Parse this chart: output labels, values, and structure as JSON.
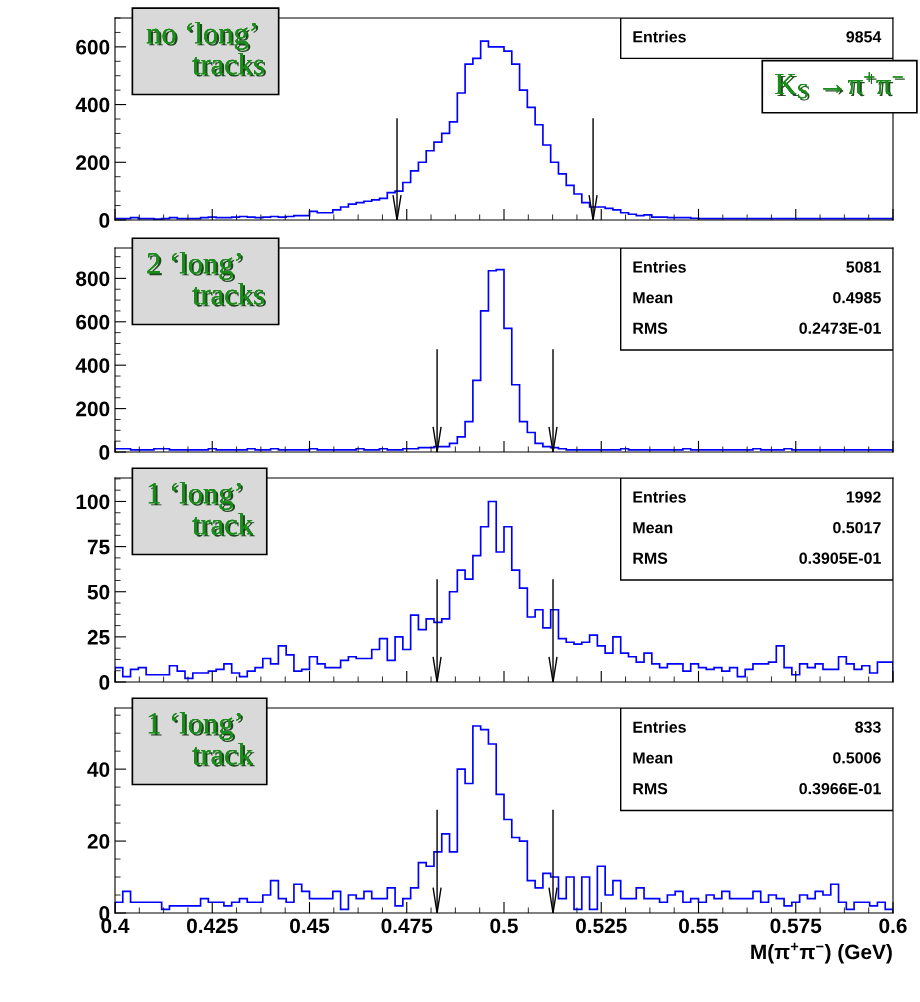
{
  "chart_data": [
    {
      "type": "histogram",
      "title": "no ‘long’ tracks",
      "subtitle": "K$_{S}$ →π$^{+}$π$^{−}$",
      "annotations": [
        "Entries 9854"
      ],
      "color": "#0000ff",
      "tick_labels": "y",
      "xlim": [
        0.4,
        0.6
      ],
      "xticks": [
        0.4,
        0.425,
        0.45,
        0.475,
        0.5,
        0.525,
        0.55,
        0.575,
        0.6
      ],
      "ylim": [
        0,
        700
      ],
      "yticks": [
        0,
        200,
        400,
        600
      ],
      "ref_lines": [
        {
          "axis": "x",
          "value": 0.4725
        },
        {
          "axis": "x",
          "value": 0.5229
        }
      ],
      "bins": [
        0.4,
        0.402,
        0.404,
        0.406,
        0.408,
        0.41,
        0.412,
        0.414,
        0.416,
        0.418,
        0.42,
        0.422,
        0.424,
        0.426,
        0.428,
        0.43,
        0.432,
        0.434,
        0.436,
        0.438,
        0.44,
        0.442,
        0.444,
        0.446,
        0.448,
        0.45,
        0.452,
        0.454,
        0.456,
        0.458,
        0.46,
        0.462,
        0.464,
        0.466,
        0.468,
        0.47,
        0.472,
        0.474,
        0.476,
        0.478,
        0.48,
        0.482,
        0.484,
        0.486,
        0.488,
        0.49,
        0.492,
        0.494,
        0.496,
        0.498,
        0.5,
        0.502,
        0.504,
        0.506,
        0.508,
        0.51,
        0.512,
        0.514,
        0.516,
        0.518,
        0.52,
        0.522,
        0.524,
        0.526,
        0.528,
        0.53,
        0.532,
        0.534,
        0.536,
        0.538,
        0.54,
        0.542,
        0.544,
        0.546,
        0.548,
        0.55,
        0.552,
        0.554,
        0.556,
        0.558,
        0.56,
        0.562,
        0.564,
        0.566,
        0.568,
        0.57,
        0.572,
        0.574,
        0.576,
        0.578,
        0.58,
        0.582,
        0.584,
        0.586,
        0.588,
        0.59,
        0.592,
        0.594,
        0.596,
        0.598,
        0.6
      ],
      "values": [
        5,
        5,
        8,
        5,
        5,
        3,
        5,
        8,
        5,
        5,
        5,
        8,
        10,
        8,
        8,
        10,
        12,
        10,
        8,
        10,
        12,
        10,
        12,
        15,
        15,
        30,
        25,
        25,
        35,
        45,
        55,
        60,
        65,
        70,
        75,
        95,
        100,
        130,
        170,
        200,
        240,
        270,
        300,
        340,
        440,
        540,
        560,
        620,
        600,
        600,
        585,
        540,
        450,
        390,
        330,
        260,
        200,
        160,
        120,
        90,
        60,
        45,
        45,
        40,
        35,
        25,
        20,
        15,
        18,
        10,
        10,
        8,
        8,
        8,
        6,
        5,
        5,
        5,
        5,
        5,
        5,
        5,
        5,
        5,
        5,
        5,
        5,
        5,
        5,
        5,
        5,
        5,
        5,
        5,
        5,
        5,
        5,
        5,
        5,
        5
      ]
    },
    {
      "type": "histogram",
      "title": "2 ‘long’ tracks",
      "annotations": [
        "Entries 5081",
        "Mean 0.4985",
        "RMS 0.2473E-01"
      ],
      "color": "#0000ff",
      "tick_labels": "y",
      "xlim": [
        0.4,
        0.6
      ],
      "xticks": [
        0.4,
        0.425,
        0.45,
        0.475,
        0.5,
        0.525,
        0.55,
        0.575,
        0.6
      ],
      "ylim": [
        0,
        940
      ],
      "yticks": [
        0,
        200,
        400,
        600,
        800
      ],
      "ref_lines": [
        {
          "axis": "x",
          "value": 0.4828
        },
        {
          "axis": "x",
          "value": 0.5126
        }
      ],
      "bins": [
        0.4,
        0.402,
        0.404,
        0.406,
        0.408,
        0.41,
        0.412,
        0.414,
        0.416,
        0.418,
        0.42,
        0.422,
        0.424,
        0.426,
        0.428,
        0.43,
        0.432,
        0.434,
        0.436,
        0.438,
        0.44,
        0.442,
        0.444,
        0.446,
        0.448,
        0.45,
        0.452,
        0.454,
        0.456,
        0.458,
        0.46,
        0.462,
        0.464,
        0.466,
        0.468,
        0.47,
        0.472,
        0.474,
        0.476,
        0.478,
        0.48,
        0.482,
        0.484,
        0.486,
        0.488,
        0.49,
        0.492,
        0.494,
        0.496,
        0.498,
        0.5,
        0.502,
        0.504,
        0.506,
        0.508,
        0.51,
        0.512,
        0.514,
        0.516,
        0.518,
        0.52,
        0.522,
        0.524,
        0.526,
        0.528,
        0.53,
        0.532,
        0.534,
        0.536,
        0.538,
        0.54,
        0.542,
        0.544,
        0.546,
        0.548,
        0.55,
        0.552,
        0.554,
        0.556,
        0.558,
        0.56,
        0.562,
        0.564,
        0.566,
        0.568,
        0.57,
        0.572,
        0.574,
        0.576,
        0.578,
        0.58,
        0.582,
        0.584,
        0.586,
        0.588,
        0.59,
        0.592,
        0.594,
        0.596,
        0.598,
        0.6
      ],
      "values": [
        15,
        15,
        10,
        10,
        10,
        15,
        15,
        10,
        10,
        10,
        10,
        10,
        15,
        10,
        10,
        10,
        10,
        15,
        10,
        10,
        15,
        10,
        10,
        10,
        10,
        15,
        10,
        10,
        10,
        10,
        10,
        15,
        10,
        10,
        15,
        10,
        10,
        15,
        15,
        20,
        20,
        25,
        25,
        40,
        70,
        140,
        330,
        650,
        835,
        840,
        570,
        310,
        140,
        90,
        40,
        25,
        20,
        15,
        10,
        10,
        10,
        10,
        10,
        10,
        10,
        15,
        10,
        10,
        10,
        10,
        10,
        10,
        10,
        15,
        10,
        10,
        10,
        10,
        10,
        10,
        10,
        10,
        15,
        10,
        10,
        10,
        15,
        10,
        10,
        10,
        10,
        10,
        10,
        10,
        10,
        10,
        10,
        10,
        10,
        10
      ]
    },
    {
      "type": "histogram",
      "title": "1 ‘long’ track",
      "annotations": [
        "Entries 1992",
        "Mean 0.5017",
        "RMS 0.3905E-01"
      ],
      "color": "#0000ff",
      "tick_labels": "y",
      "xlim": [
        0.4,
        0.6
      ],
      "xticks": [
        0.4,
        0.425,
        0.45,
        0.475,
        0.5,
        0.525,
        0.55,
        0.575,
        0.6
      ],
      "ylim": [
        0,
        113
      ],
      "yticks": [
        0,
        25,
        50,
        75,
        100
      ],
      "ref_lines": [
        {
          "axis": "x",
          "value": 0.4828
        },
        {
          "axis": "x",
          "value": 0.5126
        }
      ],
      "bins": [
        0.4,
        0.402,
        0.404,
        0.406,
        0.408,
        0.41,
        0.412,
        0.414,
        0.416,
        0.418,
        0.42,
        0.422,
        0.424,
        0.426,
        0.428,
        0.43,
        0.432,
        0.434,
        0.436,
        0.438,
        0.44,
        0.442,
        0.444,
        0.446,
        0.448,
        0.45,
        0.452,
        0.454,
        0.456,
        0.458,
        0.46,
        0.462,
        0.464,
        0.466,
        0.468,
        0.47,
        0.472,
        0.474,
        0.476,
        0.478,
        0.48,
        0.482,
        0.484,
        0.486,
        0.488,
        0.49,
        0.492,
        0.494,
        0.496,
        0.498,
        0.5,
        0.502,
        0.504,
        0.506,
        0.508,
        0.51,
        0.512,
        0.514,
        0.516,
        0.518,
        0.52,
        0.522,
        0.524,
        0.526,
        0.528,
        0.53,
        0.532,
        0.534,
        0.536,
        0.538,
        0.54,
        0.542,
        0.544,
        0.546,
        0.548,
        0.55,
        0.552,
        0.554,
        0.556,
        0.558,
        0.56,
        0.562,
        0.564,
        0.566,
        0.568,
        0.57,
        0.572,
        0.574,
        0.576,
        0.578,
        0.58,
        0.582,
        0.584,
        0.586,
        0.588,
        0.59,
        0.592,
        0.594,
        0.596,
        0.598,
        0.6
      ],
      "values": [
        8,
        3,
        7,
        8,
        4,
        4,
        4,
        9,
        6,
        2,
        5,
        5,
        6,
        7,
        10,
        5,
        3,
        6,
        8,
        13,
        10,
        20,
        15,
        6,
        7,
        14,
        10,
        8,
        8,
        12,
        14,
        13,
        13,
        18,
        24,
        12,
        25,
        18,
        37,
        29,
        35,
        33,
        35,
        50,
        62,
        57,
        70,
        86,
        100,
        72,
        86,
        62,
        52,
        36,
        40,
        30,
        40,
        24,
        22,
        21,
        22,
        26,
        20,
        16,
        25,
        16,
        14,
        11,
        16,
        10,
        8,
        10,
        10,
        6,
        10,
        8,
        7,
        8,
        6,
        8,
        3,
        7,
        10,
        10,
        11,
        20,
        8,
        4,
        10,
        8,
        10,
        7,
        7,
        14,
        10,
        7,
        9,
        5,
        11,
        11
      ]
    },
    {
      "type": "histogram",
      "title": "1 ‘long’ track",
      "annotations": [
        "Entries 833",
        "Mean 0.5006",
        "RMS 0.3966E-01"
      ],
      "color": "#0000ff",
      "xlabel": "M(π$^{+}$π$^{−}$) (GeV)",
      "xlim": [
        0.4,
        0.6
      ],
      "xticks": [
        0.4,
        0.425,
        0.45,
        0.475,
        0.5,
        0.525,
        0.55,
        0.575,
        0.6
      ],
      "ylim": [
        0,
        57
      ],
      "yticks": [
        0,
        20,
        40
      ],
      "ref_lines": [
        {
          "axis": "x",
          "value": 0.4828
        },
        {
          "axis": "x",
          "value": 0.5126
        }
      ],
      "bins": [
        0.4,
        0.402,
        0.404,
        0.406,
        0.408,
        0.41,
        0.412,
        0.414,
        0.416,
        0.418,
        0.42,
        0.422,
        0.424,
        0.426,
        0.428,
        0.43,
        0.432,
        0.434,
        0.436,
        0.438,
        0.44,
        0.442,
        0.444,
        0.446,
        0.448,
        0.45,
        0.452,
        0.454,
        0.456,
        0.458,
        0.46,
        0.462,
        0.464,
        0.466,
        0.468,
        0.47,
        0.472,
        0.474,
        0.476,
        0.478,
        0.48,
        0.482,
        0.484,
        0.486,
        0.488,
        0.49,
        0.492,
        0.494,
        0.496,
        0.498,
        0.5,
        0.502,
        0.504,
        0.506,
        0.508,
        0.51,
        0.512,
        0.514,
        0.516,
        0.518,
        0.52,
        0.522,
        0.524,
        0.526,
        0.528,
        0.53,
        0.532,
        0.534,
        0.536,
        0.538,
        0.54,
        0.542,
        0.544,
        0.546,
        0.548,
        0.55,
        0.552,
        0.554,
        0.556,
        0.558,
        0.56,
        0.562,
        0.564,
        0.566,
        0.568,
        0.57,
        0.572,
        0.574,
        0.576,
        0.578,
        0.58,
        0.582,
        0.584,
        0.586,
        0.588,
        0.59,
        0.592,
        0.594,
        0.596,
        0.598,
        0.6
      ],
      "values": [
        3,
        6,
        3,
        3,
        3,
        3,
        1,
        2,
        2,
        2,
        2,
        4,
        3,
        3,
        2,
        3,
        4,
        3,
        3,
        5,
        9,
        4,
        3,
        8,
        6,
        4,
        4,
        4,
        6,
        1,
        5,
        4,
        6,
        4,
        4,
        7,
        2,
        4,
        7,
        14,
        13,
        17,
        22,
        17,
        40,
        36,
        52,
        51,
        47,
        33,
        26,
        21,
        20,
        9,
        7,
        11,
        10,
        4,
        10,
        1,
        10,
        1,
        13,
        5,
        9,
        4,
        4,
        7,
        4,
        4,
        3,
        5,
        6,
        3,
        4,
        3,
        5,
        4,
        6,
        4,
        4,
        4,
        6,
        3,
        5,
        4,
        2,
        3,
        5,
        4,
        6,
        5,
        8,
        3,
        1,
        3,
        3,
        2,
        3,
        1
      ]
    }
  ]
}
